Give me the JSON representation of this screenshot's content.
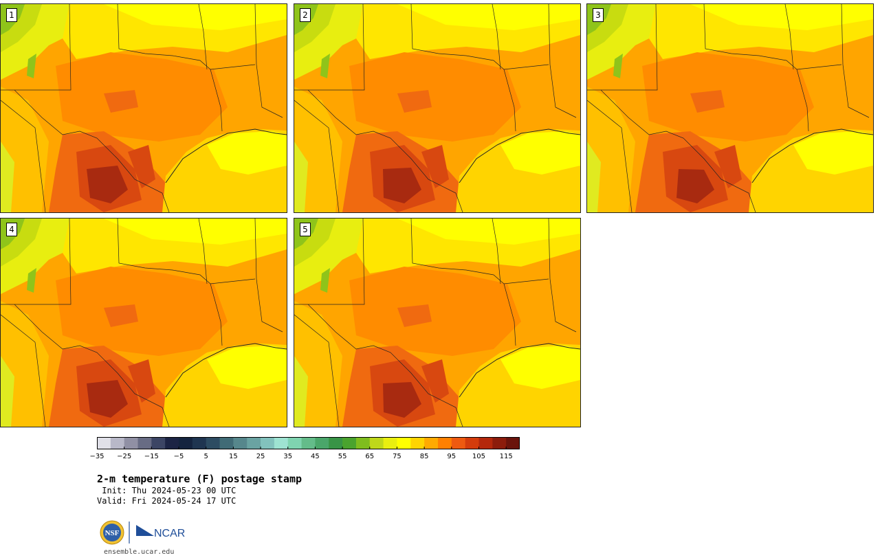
{
  "figure": {
    "title": "2-m temperature (F) postage stamp",
    "init": " Init: Thu 2024-05-23 00 UTC",
    "valid": "Valid: Fri 2024-05-24 17 UTC",
    "site": "ensemble.ucar.edu"
  },
  "panels": [
    {
      "label": "1"
    },
    {
      "label": "2"
    },
    {
      "label": "3"
    },
    {
      "label": "4"
    },
    {
      "label": "5"
    }
  ],
  "colorbar": {
    "ticks": [
      "−35",
      "−25",
      "−15",
      "−5",
      "5",
      "15",
      "25",
      "35",
      "45",
      "55",
      "65",
      "75",
      "85",
      "95",
      "105",
      "115"
    ],
    "colors": [
      "#e0e0e8",
      "#b8b8c8",
      "#9090a4",
      "#686c84",
      "#3c4564",
      "#1c2444",
      "#15243f",
      "#1f3550",
      "#2d4c62",
      "#406b76",
      "#56878c",
      "#6aa3a2",
      "#82c2bd",
      "#9ee3d2",
      "#7fd4b0",
      "#64bc8a",
      "#4aa66a",
      "#389446",
      "#4aa32e",
      "#7fbd1e",
      "#bfd81a",
      "#e9ef10",
      "#ffff00",
      "#ffd400",
      "#ffaa00",
      "#ff8000",
      "#ee5a10",
      "#d43c0c",
      "#b4280c",
      "#8c1c0c",
      "#6a140c"
    ]
  },
  "logos": {
    "nsf": "NSF",
    "ncar": "NCAR"
  }
}
